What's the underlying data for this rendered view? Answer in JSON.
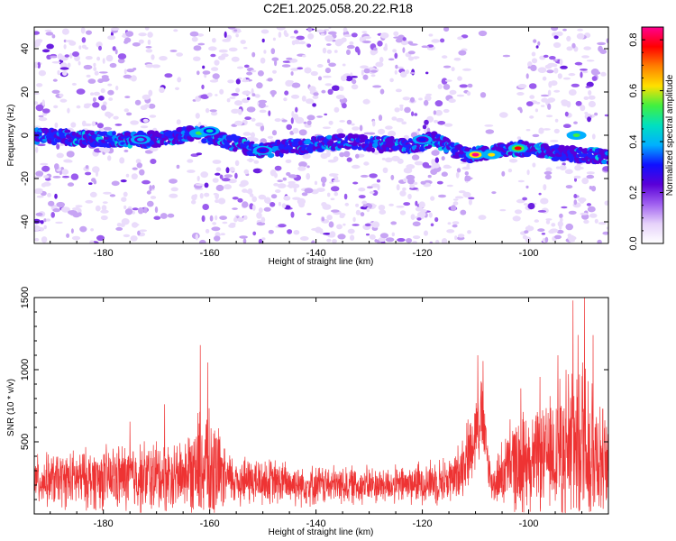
{
  "title": "C2E1.2025.058.20.22.R18",
  "colors": {
    "snr_line": "#ee3333",
    "frame": "#000000",
    "colormap": [
      "#ffffff",
      "#e6d2fa",
      "#a060f0",
      "#5a00d8",
      "#1010ff",
      "#00b0ff",
      "#00e0c0",
      "#40f040",
      "#ffe000",
      "#ff8000",
      "#ff0000",
      "#ff0090"
    ]
  },
  "chart_data": [
    {
      "type": "heatmap",
      "xlabel": "Height of straight line (km)",
      "ylabel": "Frequency (Hz)",
      "xlim": [
        -193,
        -85
      ],
      "ylim": [
        -50,
        50
      ],
      "x_ticks": [
        -180,
        -160,
        -140,
        -120,
        -100
      ],
      "x_tick_labels": [
        "-180",
        "-160",
        "-140",
        "-120",
        "-100"
      ],
      "y_ticks": [
        -40,
        -20,
        0,
        20,
        40
      ],
      "y_tick_labels": [
        "-40",
        "-20",
        "0",
        "20",
        "40"
      ],
      "colorbar": {
        "label": "Normalized spectral amplitude",
        "range": [
          0,
          0.85
        ],
        "ticks": [
          0,
          0.2,
          0.4,
          0.6,
          0.8
        ],
        "tick_labels": [
          "0.0",
          "0.2",
          "0.4",
          "0.6",
          "0.8"
        ]
      },
      "echo_trace": [
        {
          "x": -193,
          "y": 0
        },
        {
          "x": -180,
          "y": -2
        },
        {
          "x": -170,
          "y": -2
        },
        {
          "x": -162,
          "y": 1
        },
        {
          "x": -155,
          "y": -4
        },
        {
          "x": -150,
          "y": -7
        },
        {
          "x": -135,
          "y": -3
        },
        {
          "x": -122,
          "y": -5
        },
        {
          "x": -118,
          "y": -2
        },
        {
          "x": -112,
          "y": -9
        },
        {
          "x": -103,
          "y": -6
        },
        {
          "x": -95,
          "y": -8
        },
        {
          "x": -85,
          "y": -10
        }
      ],
      "peaks": [
        {
          "x": -162,
          "y": 1,
          "amp": 0.55
        },
        {
          "x": -160,
          "y": 2,
          "amp": 0.45
        },
        {
          "x": -173,
          "y": -2,
          "amp": 0.35
        },
        {
          "x": -110,
          "y": -9,
          "amp": 0.85
        },
        {
          "x": -102,
          "y": -6,
          "amp": 0.8
        },
        {
          "x": -107,
          "y": -9,
          "amp": 0.6
        },
        {
          "x": -91,
          "y": 0,
          "amp": 0.55
        },
        {
          "x": -120,
          "y": -2,
          "amp": 0.3
        },
        {
          "x": -150,
          "y": -7,
          "amp": 0.3
        }
      ],
      "gaps": [
        [
          -170,
          -163
        ],
        [
          -111,
          -102
        ]
      ]
    },
    {
      "type": "line",
      "xlabel": "Height of straight line (km)",
      "ylabel": "SNR (10 * v/v)",
      "xlim": [
        -193,
        -85
      ],
      "ylim": [
        0,
        1500
      ],
      "x_ticks": [
        -180,
        -160,
        -140,
        -120,
        -100
      ],
      "x_tick_labels": [
        "-180",
        "-160",
        "-140",
        "-120",
        "-100"
      ],
      "y_ticks": [
        500,
        1000,
        1500
      ],
      "y_tick_labels": [
        "500",
        "1000",
        "1500"
      ],
      "envelope": [
        {
          "x": -193,
          "base": 230,
          "amp": 200
        },
        {
          "x": -170,
          "base": 260,
          "amp": 300
        },
        {
          "x": -165,
          "base": 280,
          "amp": 280
        },
        {
          "x": -162,
          "base": 330,
          "amp": 450
        },
        {
          "x": -160,
          "base": 320,
          "amp": 520
        },
        {
          "x": -157,
          "base": 240,
          "amp": 220
        },
        {
          "x": -140,
          "base": 200,
          "amp": 160
        },
        {
          "x": -125,
          "base": 200,
          "amp": 150
        },
        {
          "x": -114,
          "base": 240,
          "amp": 200
        },
        {
          "x": -111,
          "base": 450,
          "amp": 300
        },
        {
          "x": -109,
          "base": 700,
          "amp": 350
        },
        {
          "x": -107,
          "base": 200,
          "amp": 130
        },
        {
          "x": -103,
          "base": 350,
          "amp": 400
        },
        {
          "x": -97,
          "base": 380,
          "amp": 400
        },
        {
          "x": -92,
          "base": 500,
          "amp": 700
        },
        {
          "x": -89,
          "base": 550,
          "amp": 800
        },
        {
          "x": -85,
          "base": 300,
          "amp": 300
        }
      ],
      "spikes": [
        {
          "x": -161.8,
          "y": 1170
        },
        {
          "x": -160.4,
          "y": 1050
        },
        {
          "x": -109.6,
          "y": 1100
        },
        {
          "x": -108.6,
          "y": 1060
        },
        {
          "x": -91.7,
          "y": 1480
        },
        {
          "x": -89.5,
          "y": 1500
        },
        {
          "x": -87.9,
          "y": 1240
        },
        {
          "x": -94.5,
          "y": 1100
        },
        {
          "x": -97.9,
          "y": 950
        },
        {
          "x": -101.5,
          "y": 870
        },
        {
          "x": -175,
          "y": 640
        },
        {
          "x": -168.5,
          "y": 760
        }
      ]
    }
  ]
}
